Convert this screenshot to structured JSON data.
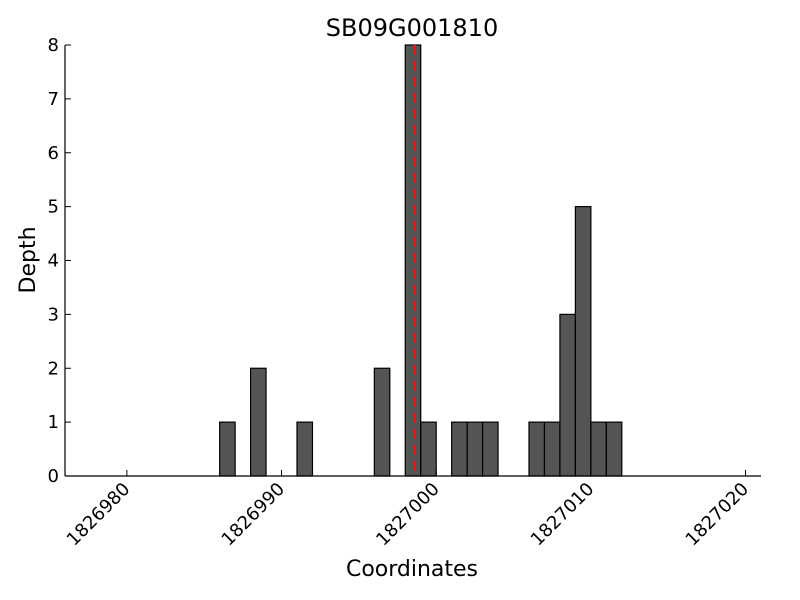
{
  "chart_data": {
    "type": "bar",
    "title": "SB09G001810",
    "xlabel": "Coordinates",
    "ylabel": "Depth",
    "xlim": [
      1826976,
      1827021
    ],
    "ylim": [
      0,
      8
    ],
    "xticks": [
      1826980,
      1826990,
      1827000,
      1827010,
      1827020
    ],
    "yticks": [
      0,
      1,
      2,
      3,
      4,
      5,
      6,
      7,
      8
    ],
    "bin_width": 1,
    "bars": [
      {
        "x": 1826986,
        "depth": 1
      },
      {
        "x": 1826988,
        "depth": 2
      },
      {
        "x": 1826991,
        "depth": 1
      },
      {
        "x": 1826996,
        "depth": 2
      },
      {
        "x": 1826998,
        "depth": 8
      },
      {
        "x": 1826999,
        "depth": 1
      },
      {
        "x": 1827001,
        "depth": 1
      },
      {
        "x": 1827002,
        "depth": 1
      },
      {
        "x": 1827003,
        "depth": 1
      },
      {
        "x": 1827006,
        "depth": 1
      },
      {
        "x": 1827007,
        "depth": 1
      },
      {
        "x": 1827008,
        "depth": 3
      },
      {
        "x": 1827009,
        "depth": 5
      },
      {
        "x": 1827010,
        "depth": 1
      },
      {
        "x": 1827011,
        "depth": 1
      }
    ],
    "marker_line": {
      "x": 1826998.6,
      "color": "#e8141c",
      "style": "dashed"
    },
    "bar_color": "#555555",
    "grid": false,
    "legend": "none"
  }
}
